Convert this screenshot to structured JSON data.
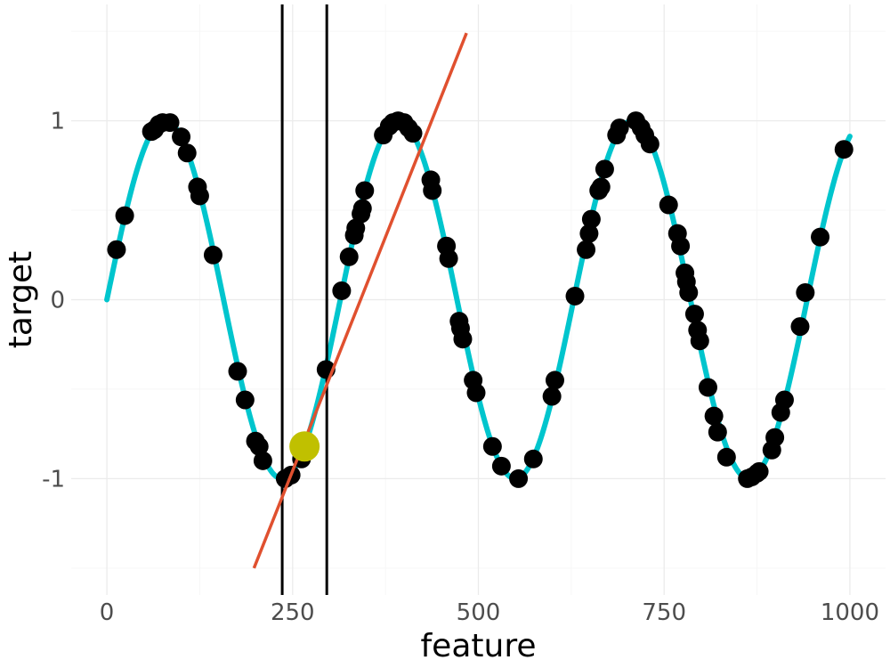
{
  "chart_data": {
    "type": "scatter",
    "title": "",
    "xlabel": "feature",
    "ylabel": "target",
    "xlim": [
      -48,
      1048
    ],
    "ylim": [
      -1.65,
      1.65
    ],
    "x_ticks": [
      0,
      250,
      500,
      750,
      1000
    ],
    "y_ticks": [
      -1,
      0,
      1
    ],
    "grid": true,
    "legend": "none",
    "colors": {
      "curve": "#00c5cd",
      "points": "#000000",
      "tangent": "#e0502f",
      "highlight": "#c0c000",
      "vlines": "#000000"
    },
    "curve": {
      "function": "sin",
      "period": 314.16,
      "x_range": [
        0,
        1000
      ]
    },
    "points": [
      {
        "x": 13,
        "y": 0.28
      },
      {
        "x": 24,
        "y": 0.47
      },
      {
        "x": 60,
        "y": 0.94
      },
      {
        "x": 64,
        "y": 0.95
      },
      {
        "x": 70,
        "y": 0.98
      },
      {
        "x": 75,
        "y": 0.99
      },
      {
        "x": 85,
        "y": 0.99
      },
      {
        "x": 100,
        "y": 0.91
      },
      {
        "x": 108,
        "y": 0.82
      },
      {
        "x": 122,
        "y": 0.63
      },
      {
        "x": 125,
        "y": 0.58
      },
      {
        "x": 143,
        "y": 0.25
      },
      {
        "x": 176,
        "y": -0.4
      },
      {
        "x": 186,
        "y": -0.56
      },
      {
        "x": 200,
        "y": -0.79
      },
      {
        "x": 205,
        "y": -0.82
      },
      {
        "x": 210,
        "y": -0.9
      },
      {
        "x": 240,
        "y": -1.0
      },
      {
        "x": 248,
        "y": -0.98
      },
      {
        "x": 262,
        "y": -0.89
      },
      {
        "x": 295,
        "y": -0.39
      },
      {
        "x": 316,
        "y": 0.05
      },
      {
        "x": 326,
        "y": 0.24
      },
      {
        "x": 333,
        "y": 0.36
      },
      {
        "x": 335,
        "y": 0.4
      },
      {
        "x": 342,
        "y": 0.48
      },
      {
        "x": 344,
        "y": 0.51
      },
      {
        "x": 347,
        "y": 0.61
      },
      {
        "x": 372,
        "y": 0.92
      },
      {
        "x": 380,
        "y": 0.97
      },
      {
        "x": 385,
        "y": 0.99
      },
      {
        "x": 392,
        "y": 1.0
      },
      {
        "x": 400,
        "y": 0.99
      },
      {
        "x": 406,
        "y": 0.96
      },
      {
        "x": 412,
        "y": 0.93
      },
      {
        "x": 436,
        "y": 0.67
      },
      {
        "x": 438,
        "y": 0.61
      },
      {
        "x": 457,
        "y": 0.3
      },
      {
        "x": 460,
        "y": 0.23
      },
      {
        "x": 474,
        "y": -0.12
      },
      {
        "x": 476,
        "y": -0.16
      },
      {
        "x": 479,
        "y": -0.22
      },
      {
        "x": 493,
        "y": -0.45
      },
      {
        "x": 497,
        "y": -0.52
      },
      {
        "x": 519,
        "y": -0.82
      },
      {
        "x": 531,
        "y": -0.93
      },
      {
        "x": 554,
        "y": -1.0
      },
      {
        "x": 574,
        "y": -0.89
      },
      {
        "x": 599,
        "y": -0.54
      },
      {
        "x": 603,
        "y": -0.45
      },
      {
        "x": 630,
        "y": 0.02
      },
      {
        "x": 645,
        "y": 0.28
      },
      {
        "x": 649,
        "y": 0.37
      },
      {
        "x": 652,
        "y": 0.45
      },
      {
        "x": 662,
        "y": 0.61
      },
      {
        "x": 665,
        "y": 0.63
      },
      {
        "x": 670,
        "y": 0.73
      },
      {
        "x": 686,
        "y": 0.92
      },
      {
        "x": 690,
        "y": 0.96
      },
      {
        "x": 712,
        "y": 1.0
      },
      {
        "x": 719,
        "y": 0.96
      },
      {
        "x": 724,
        "y": 0.92
      },
      {
        "x": 731,
        "y": 0.87
      },
      {
        "x": 756,
        "y": 0.53
      },
      {
        "x": 768,
        "y": 0.37
      },
      {
        "x": 772,
        "y": 0.3
      },
      {
        "x": 778,
        "y": 0.15
      },
      {
        "x": 780,
        "y": 0.1
      },
      {
        "x": 783,
        "y": 0.04
      },
      {
        "x": 791,
        "y": -0.08
      },
      {
        "x": 795,
        "y": -0.17
      },
      {
        "x": 798,
        "y": -0.23
      },
      {
        "x": 809,
        "y": -0.49
      },
      {
        "x": 817,
        "y": -0.65
      },
      {
        "x": 822,
        "y": -0.74
      },
      {
        "x": 834,
        "y": -0.88
      },
      {
        "x": 862,
        "y": -1.0
      },
      {
        "x": 868,
        "y": -0.99
      },
      {
        "x": 875,
        "y": -0.97
      },
      {
        "x": 878,
        "y": -0.96
      },
      {
        "x": 895,
        "y": -0.84
      },
      {
        "x": 899,
        "y": -0.77
      },
      {
        "x": 907,
        "y": -0.63
      },
      {
        "x": 912,
        "y": -0.56
      },
      {
        "x": 933,
        "y": -0.15
      },
      {
        "x": 940,
        "y": 0.04
      },
      {
        "x": 960,
        "y": 0.35
      },
      {
        "x": 992,
        "y": 0.84
      }
    ],
    "highlight_point": {
      "x": 266,
      "y": -0.82
    },
    "vertical_lines": [
      236,
      296
    ],
    "tangent_line": {
      "x": [
        198,
        484
      ],
      "y": [
        -1.5,
        1.49
      ]
    }
  }
}
